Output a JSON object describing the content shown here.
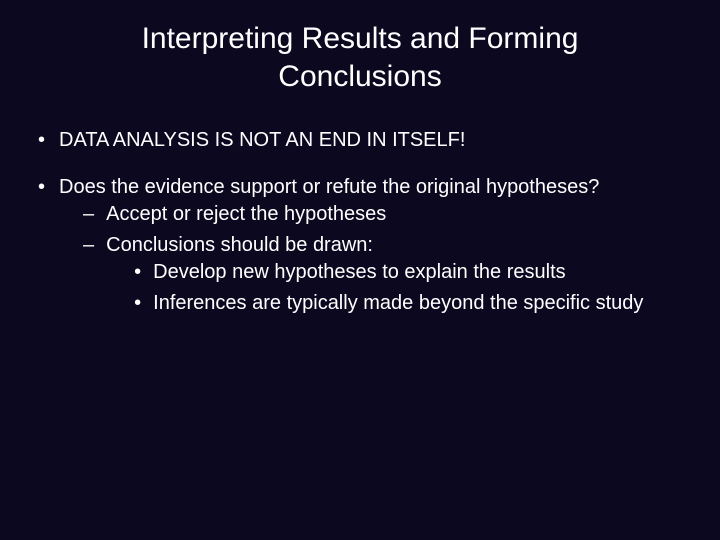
{
  "background_color": "#0b0820",
  "text_color": "#ffffff",
  "title_fontsize": 30,
  "body_fontsize": 20,
  "title": "Interpreting Results and Forming Conclusions",
  "bullets": {
    "b1": "DATA ANALYSIS IS NOT AN END IN ITSELF!",
    "b2": "Does the evidence support or refute the original hypotheses?",
    "b2_1": "Accept or reject the hypotheses",
    "b2_2": "Conclusions should be drawn:",
    "b2_2_1": "Develop new hypotheses to explain the results",
    "b2_2_2": "Inferences are typically made beyond the specific study"
  }
}
